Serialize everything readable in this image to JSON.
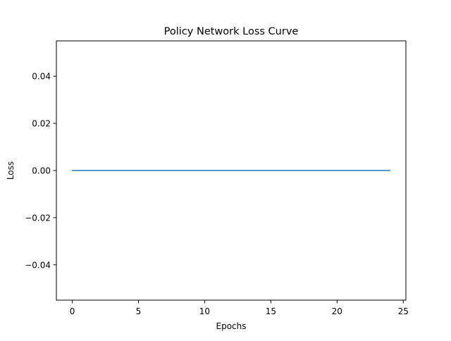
{
  "chart_data": {
    "type": "line",
    "title": "Policy Network Loss Curve",
    "xlabel": "Epochs",
    "ylabel": "Loss",
    "xlim": [
      -1.2,
      25.2
    ],
    "ylim": [
      -0.055,
      0.055
    ],
    "xticks": [
      0,
      5,
      10,
      15,
      20,
      25
    ],
    "yticks": [
      -0.04,
      -0.02,
      0.0,
      0.02,
      0.04
    ],
    "ytick_labels": [
      "−0.04",
      "−0.02",
      "0.00",
      "0.02",
      "0.04"
    ],
    "grid": false,
    "series": [
      {
        "color": "#1f77b4",
        "x": [
          0,
          1,
          2,
          3,
          4,
          5,
          6,
          7,
          8,
          9,
          10,
          11,
          12,
          13,
          14,
          15,
          16,
          17,
          18,
          19,
          20,
          21,
          22,
          23,
          24
        ],
        "y": [
          0,
          0,
          0,
          0,
          0,
          0,
          0,
          0,
          0,
          0,
          0,
          0,
          0,
          0,
          0,
          0,
          0,
          0,
          0,
          0,
          0,
          0,
          0,
          0,
          0
        ]
      }
    ]
  }
}
